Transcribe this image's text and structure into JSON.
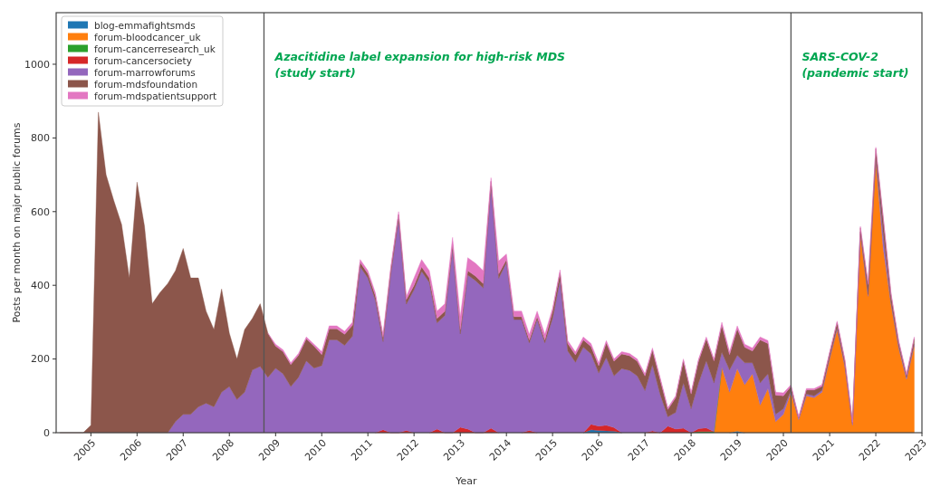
{
  "chart_data": {
    "type": "area",
    "stacked": true,
    "xlabel": "Year",
    "ylabel": "Posts per month on major public forums",
    "legend": "top left",
    "grid": false,
    "x": [
      "2004-05",
      "2004-07",
      "2004-09",
      "2004-11",
      "2005-01",
      "2005-03",
      "2005-05",
      "2005-07",
      "2005-09",
      "2005-11",
      "2006-01",
      "2006-03",
      "2006-05",
      "2006-07",
      "2006-09",
      "2006-11",
      "2007-01",
      "2007-03",
      "2007-05",
      "2007-07",
      "2007-09",
      "2007-11",
      "2008-01",
      "2008-03",
      "2008-05",
      "2008-07",
      "2008-09",
      "2008-11",
      "2009-01",
      "2009-03",
      "2009-05",
      "2009-07",
      "2009-09",
      "2009-11",
      "2010-01",
      "2010-03",
      "2010-05",
      "2010-07",
      "2010-09",
      "2010-11",
      "2011-01",
      "2011-03",
      "2011-05",
      "2011-07",
      "2011-09",
      "2011-11",
      "2012-01",
      "2012-03",
      "2012-05",
      "2012-07",
      "2012-09",
      "2012-11",
      "2013-01",
      "2013-03",
      "2013-05",
      "2013-07",
      "2013-09",
      "2013-11",
      "2014-01",
      "2014-03",
      "2014-05",
      "2014-07",
      "2014-09",
      "2014-11",
      "2015-01",
      "2015-03",
      "2015-05",
      "2015-07",
      "2015-09",
      "2015-11",
      "2016-01",
      "2016-03",
      "2016-05",
      "2016-07",
      "2016-09",
      "2016-11",
      "2017-01",
      "2017-03",
      "2017-05",
      "2017-07",
      "2017-09",
      "2017-11",
      "2018-01",
      "2018-03",
      "2018-05",
      "2018-07",
      "2018-09",
      "2018-11",
      "2019-01",
      "2019-03",
      "2019-05",
      "2019-07",
      "2019-09",
      "2019-11",
      "2020-01",
      "2020-03",
      "2020-05",
      "2020-07",
      "2020-09",
      "2020-11",
      "2021-01",
      "2021-03",
      "2021-05",
      "2021-07",
      "2021-09",
      "2021-11",
      "2022-01",
      "2022-03",
      "2022-05",
      "2022-07",
      "2022-09",
      "2022-11"
    ],
    "xlim": [
      "2004-04",
      "2023-01"
    ],
    "xticks": [
      {
        "value": "2005",
        "label": "2005"
      },
      {
        "value": "2006",
        "label": "2006"
      },
      {
        "value": "2007",
        "label": "2007"
      },
      {
        "value": "2008",
        "label": "2008"
      },
      {
        "value": "2009",
        "label": "2009"
      },
      {
        "value": "2010",
        "label": "2010"
      },
      {
        "value": "2011",
        "label": "2011"
      },
      {
        "value": "2012",
        "label": "2012"
      },
      {
        "value": "2013",
        "label": "2013"
      },
      {
        "value": "2014",
        "label": "2014"
      },
      {
        "value": "2015",
        "label": "2015"
      },
      {
        "value": "2016",
        "label": "2016"
      },
      {
        "value": "2017",
        "label": "2017"
      },
      {
        "value": "2018",
        "label": "2018"
      },
      {
        "value": "2019",
        "label": "2019"
      },
      {
        "value": "2020",
        "label": "2020"
      },
      {
        "value": "2021",
        "label": "2021"
      },
      {
        "value": "2022",
        "label": "2022"
      },
      {
        "value": "2023",
        "label": "2023"
      }
    ],
    "ylim": [
      0,
      1140
    ],
    "yticks": [
      0,
      200,
      400,
      600,
      800,
      1000
    ],
    "ref_lines": [
      {
        "axis": "x",
        "value": "2008-10",
        "label": "Azacitidine label expansion for high-risk MDS\n(study start)",
        "color": "#555555"
      },
      {
        "axis": "x",
        "value": "2020-03",
        "label": "SARS-COV-2\n(pandemic start)",
        "color": "#555555"
      }
    ],
    "series": [
      {
        "name": "blog-emmafightsmds",
        "color": "#1f77b4",
        "values": [
          null,
          null,
          null,
          null,
          null,
          null,
          null,
          null,
          null,
          null,
          null,
          null,
          null,
          null,
          null,
          null,
          null,
          null,
          null,
          null,
          null,
          null,
          null,
          null,
          null,
          null,
          null,
          null,
          null,
          null,
          null,
          null,
          null,
          null,
          null,
          null,
          null,
          null,
          null,
          null,
          null,
          null,
          null,
          null,
          null,
          null,
          null,
          null,
          null,
          null,
          null,
          null,
          null,
          null,
          null,
          null,
          null,
          null,
          null,
          null,
          null,
          null,
          null,
          null,
          null,
          null,
          null,
          null,
          0,
          8,
          6,
          5,
          4,
          0,
          null,
          null,
          null,
          null,
          null,
          null,
          null,
          null,
          null,
          null,
          null,
          null,
          null,
          0,
          4,
          0,
          null,
          null,
          null,
          null,
          null,
          null,
          null,
          null,
          null,
          null,
          null,
          null,
          null,
          null,
          null,
          null,
          null,
          null,
          null,
          null,
          null,
          null
        ]
      },
      {
        "name": "forum-bloodcancer_uk",
        "color": "#ff7f0e",
        "values": [
          null,
          null,
          null,
          null,
          null,
          null,
          null,
          null,
          null,
          null,
          null,
          null,
          null,
          null,
          null,
          null,
          null,
          null,
          null,
          null,
          null,
          null,
          null,
          null,
          null,
          null,
          null,
          null,
          null,
          null,
          null,
          null,
          null,
          null,
          null,
          null,
          null,
          null,
          null,
          null,
          null,
          null,
          null,
          null,
          null,
          null,
          null,
          null,
          null,
          null,
          null,
          null,
          null,
          null,
          null,
          null,
          null,
          null,
          null,
          null,
          null,
          null,
          null,
          null,
          null,
          null,
          null,
          null,
          null,
          null,
          null,
          null,
          null,
          null,
          null,
          null,
          null,
          null,
          null,
          null,
          null,
          null,
          null,
          null,
          null,
          0,
          178,
          110,
          170,
          130,
          160,
          75,
          120,
          30,
          50,
          110,
          35,
          100,
          95,
          110,
          200,
          280,
          180,
          20,
          540,
          370,
          740,
          500,
          350,
          230,
          145,
          235
        ]
      },
      {
        "name": "forum-cancerresearch_uk",
        "color": "#2ca02c",
        "values": [
          null,
          null,
          null,
          null,
          null,
          null,
          null,
          null,
          null,
          null,
          null,
          null,
          null,
          null,
          null,
          null,
          null,
          null,
          null,
          null,
          null,
          null,
          null,
          null,
          null,
          null,
          null,
          null,
          null,
          null,
          null,
          null,
          null,
          null,
          null,
          null,
          null,
          null,
          null,
          null,
          null,
          null,
          null,
          null,
          null,
          null,
          null,
          null,
          null,
          null,
          null,
          null,
          null,
          null,
          null,
          null,
          null,
          null,
          null,
          null,
          null,
          null,
          null,
          null,
          null,
          null,
          null,
          null,
          null,
          null,
          null,
          null,
          null,
          null,
          null,
          null,
          null,
          null,
          null,
          null,
          null,
          null,
          0,
          3,
          3,
          3,
          0,
          null,
          null,
          null,
          null,
          null,
          null,
          null,
          null,
          null,
          null,
          null,
          null,
          null,
          null,
          null,
          null,
          null,
          null,
          null,
          null,
          null,
          null,
          null,
          null,
          null
        ]
      },
      {
        "name": "forum-cancersociety",
        "color": "#d62728",
        "values": [
          null,
          null,
          null,
          null,
          null,
          null,
          null,
          null,
          null,
          null,
          null,
          null,
          null,
          null,
          null,
          null,
          null,
          null,
          null,
          null,
          null,
          null,
          null,
          null,
          null,
          null,
          null,
          null,
          null,
          null,
          null,
          null,
          null,
          null,
          null,
          null,
          null,
          null,
          null,
          null,
          null,
          0,
          8,
          0,
          0,
          6,
          0,
          null,
          0,
          10,
          0,
          0,
          15,
          10,
          0,
          0,
          12,
          0,
          null,
          null,
          0,
          6,
          0,
          null,
          null,
          null,
          null,
          null,
          0,
          15,
          12,
          15,
          10,
          0,
          null,
          null,
          0,
          5,
          0,
          18,
          10,
          12,
          0,
          8,
          10,
          0,
          null,
          null,
          null,
          null,
          null,
          null,
          null,
          null,
          null,
          null,
          null,
          null,
          null,
          null,
          null,
          null,
          null,
          null,
          null,
          null,
          null,
          null,
          null,
          null,
          null,
          null
        ]
      },
      {
        "name": "forum-marrowforums",
        "color": "#9467bd",
        "values": [
          null,
          null,
          null,
          null,
          null,
          null,
          null,
          null,
          null,
          null,
          null,
          null,
          null,
          null,
          0,
          30,
          50,
          50,
          70,
          80,
          70,
          110,
          125,
          90,
          110,
          170,
          180,
          150,
          175,
          160,
          125,
          150,
          195,
          175,
          182,
          252,
          252,
          237,
          262,
          450,
          420,
          360,
          239,
          430,
          580,
          343,
          388,
          438,
          408,
          288,
          318,
          498,
          253,
          418,
          413,
          393,
          658,
          419,
          462,
          307,
          307,
          238,
          307,
          244,
          310,
          414,
          222,
          191,
          232,
          191,
          144,
          184,
          140,
          174,
          169,
          154,
          114,
          179,
          104,
          25,
          45,
          123,
          65,
          124,
          182,
          132,
          40,
          60,
          36,
          60,
          30,
          60,
          40,
          20,
          15,
          5,
          5,
          5,
          5,
          5,
          5,
          5,
          5,
          5,
          5,
          5,
          5,
          40,
          5,
          5,
          5,
          5
        ]
      },
      {
        "name": "forum-mdsfoundation",
        "color": "#8c564b",
        "values": [
          0,
          0,
          0,
          0,
          20,
          870,
          700,
          630,
          565,
          420,
          680,
          560,
          350,
          380,
          405,
          410,
          450,
          370,
          350,
          250,
          210,
          280,
          145,
          110,
          170,
          140,
          170,
          120,
          60,
          60,
          60,
          60,
          60,
          60,
          30,
          30,
          30,
          30,
          30,
          12,
          12,
          12,
          12,
          12,
          12,
          12,
          12,
          12,
          12,
          12,
          12,
          12,
          12,
          12,
          12,
          12,
          12,
          12,
          8,
          8,
          8,
          8,
          8,
          8,
          20,
          20,
          20,
          20,
          20,
          20,
          20,
          40,
          40,
          40,
          40,
          40,
          40,
          40,
          40,
          20,
          40,
          60,
          40,
          60,
          60,
          60,
          74,
          42,
          72,
          42,
          32,
          117,
          82,
          52,
          35,
          11,
          0,
          11,
          16,
          11,
          11,
          14,
          11,
          0,
          11,
          27,
          26,
          41,
          21,
          11,
          6,
          16
        ]
      },
      {
        "name": "forum-mdspatientsupport",
        "color": "#e377c2",
        "values": [
          null,
          null,
          null,
          null,
          null,
          null,
          null,
          null,
          null,
          null,
          null,
          null,
          null,
          null,
          null,
          null,
          null,
          null,
          null,
          null,
          null,
          null,
          null,
          null,
          null,
          null,
          null,
          0,
          5,
          5,
          5,
          5,
          5,
          5,
          8,
          8,
          8,
          8,
          8,
          8,
          8,
          8,
          8,
          8,
          8,
          8,
          20,
          20,
          20,
          20,
          20,
          20,
          35,
          35,
          35,
          35,
          10,
          35,
          15,
          15,
          15,
          15,
          15,
          15,
          8,
          8,
          8,
          8,
          8,
          8,
          8,
          6,
          6,
          6,
          6,
          6,
          6,
          6,
          6,
          5,
          5,
          5,
          5,
          5,
          5,
          5,
          8,
          8,
          8,
          8,
          8,
          8,
          8,
          8,
          8,
          4,
          4,
          4,
          4,
          4,
          4,
          4,
          4,
          4,
          4,
          4,
          4,
          4,
          4,
          4,
          4,
          4
        ]
      }
    ]
  }
}
